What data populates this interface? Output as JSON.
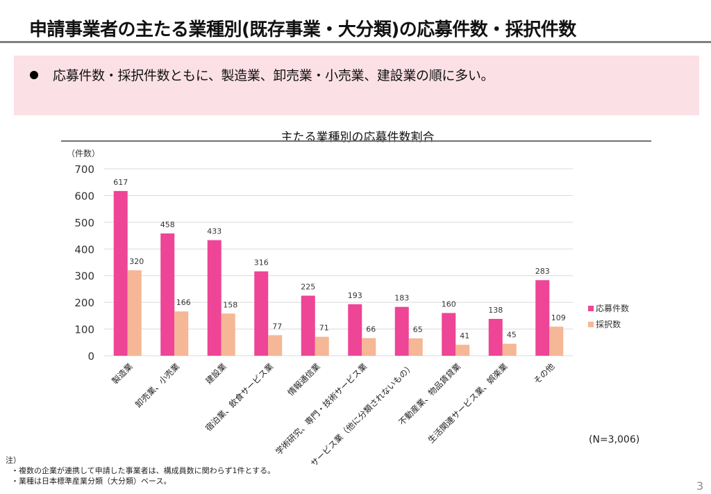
{
  "header": {
    "title": "申請事業者の主たる業種別(既存事業・大分類)の応募件数・採択件数"
  },
  "callout": {
    "text": "応募件数・採択件数ともに、製造業、卸売業・小売業、建設業の順に多い。"
  },
  "chart_data": {
    "type": "bar",
    "title": "主たる業種別の応募件数割合",
    "ylabel": "（件数）",
    "xlabel": "",
    "ylim": [
      0,
      700
    ],
    "yticks": [
      0,
      100,
      200,
      300,
      400,
      500,
      600,
      700
    ],
    "grid": true,
    "legend_position": "right",
    "categories": [
      "製造業",
      "卸売業、小売業",
      "建設業",
      "宿泊業、飲食サービス業",
      "情報通信業",
      "学術研究、専門・技術サービス業",
      "サービス業（他に分類されないもの）",
      "不動産業、物品賃貸業",
      "生活関連サービス業、娯楽業",
      "その他"
    ],
    "series": [
      {
        "name": "応募件数",
        "color": "#ee4596",
        "values": [
          617,
          458,
          433,
          316,
          225,
          193,
          183,
          160,
          138,
          283
        ]
      },
      {
        "name": "採択数",
        "color": "#f5b795",
        "values": [
          320,
          166,
          158,
          77,
          71,
          66,
          65,
          41,
          45,
          109
        ]
      }
    ],
    "annotation": "(N=3,006)"
  },
  "notes": {
    "heading": "注）",
    "lines": [
      "・複数の企業が連携して申請した事業者は、構成員数に関わらず1件とする。",
      "・業種は日本標準産業分類（大分類）ベース。"
    ]
  },
  "page_number": "3"
}
